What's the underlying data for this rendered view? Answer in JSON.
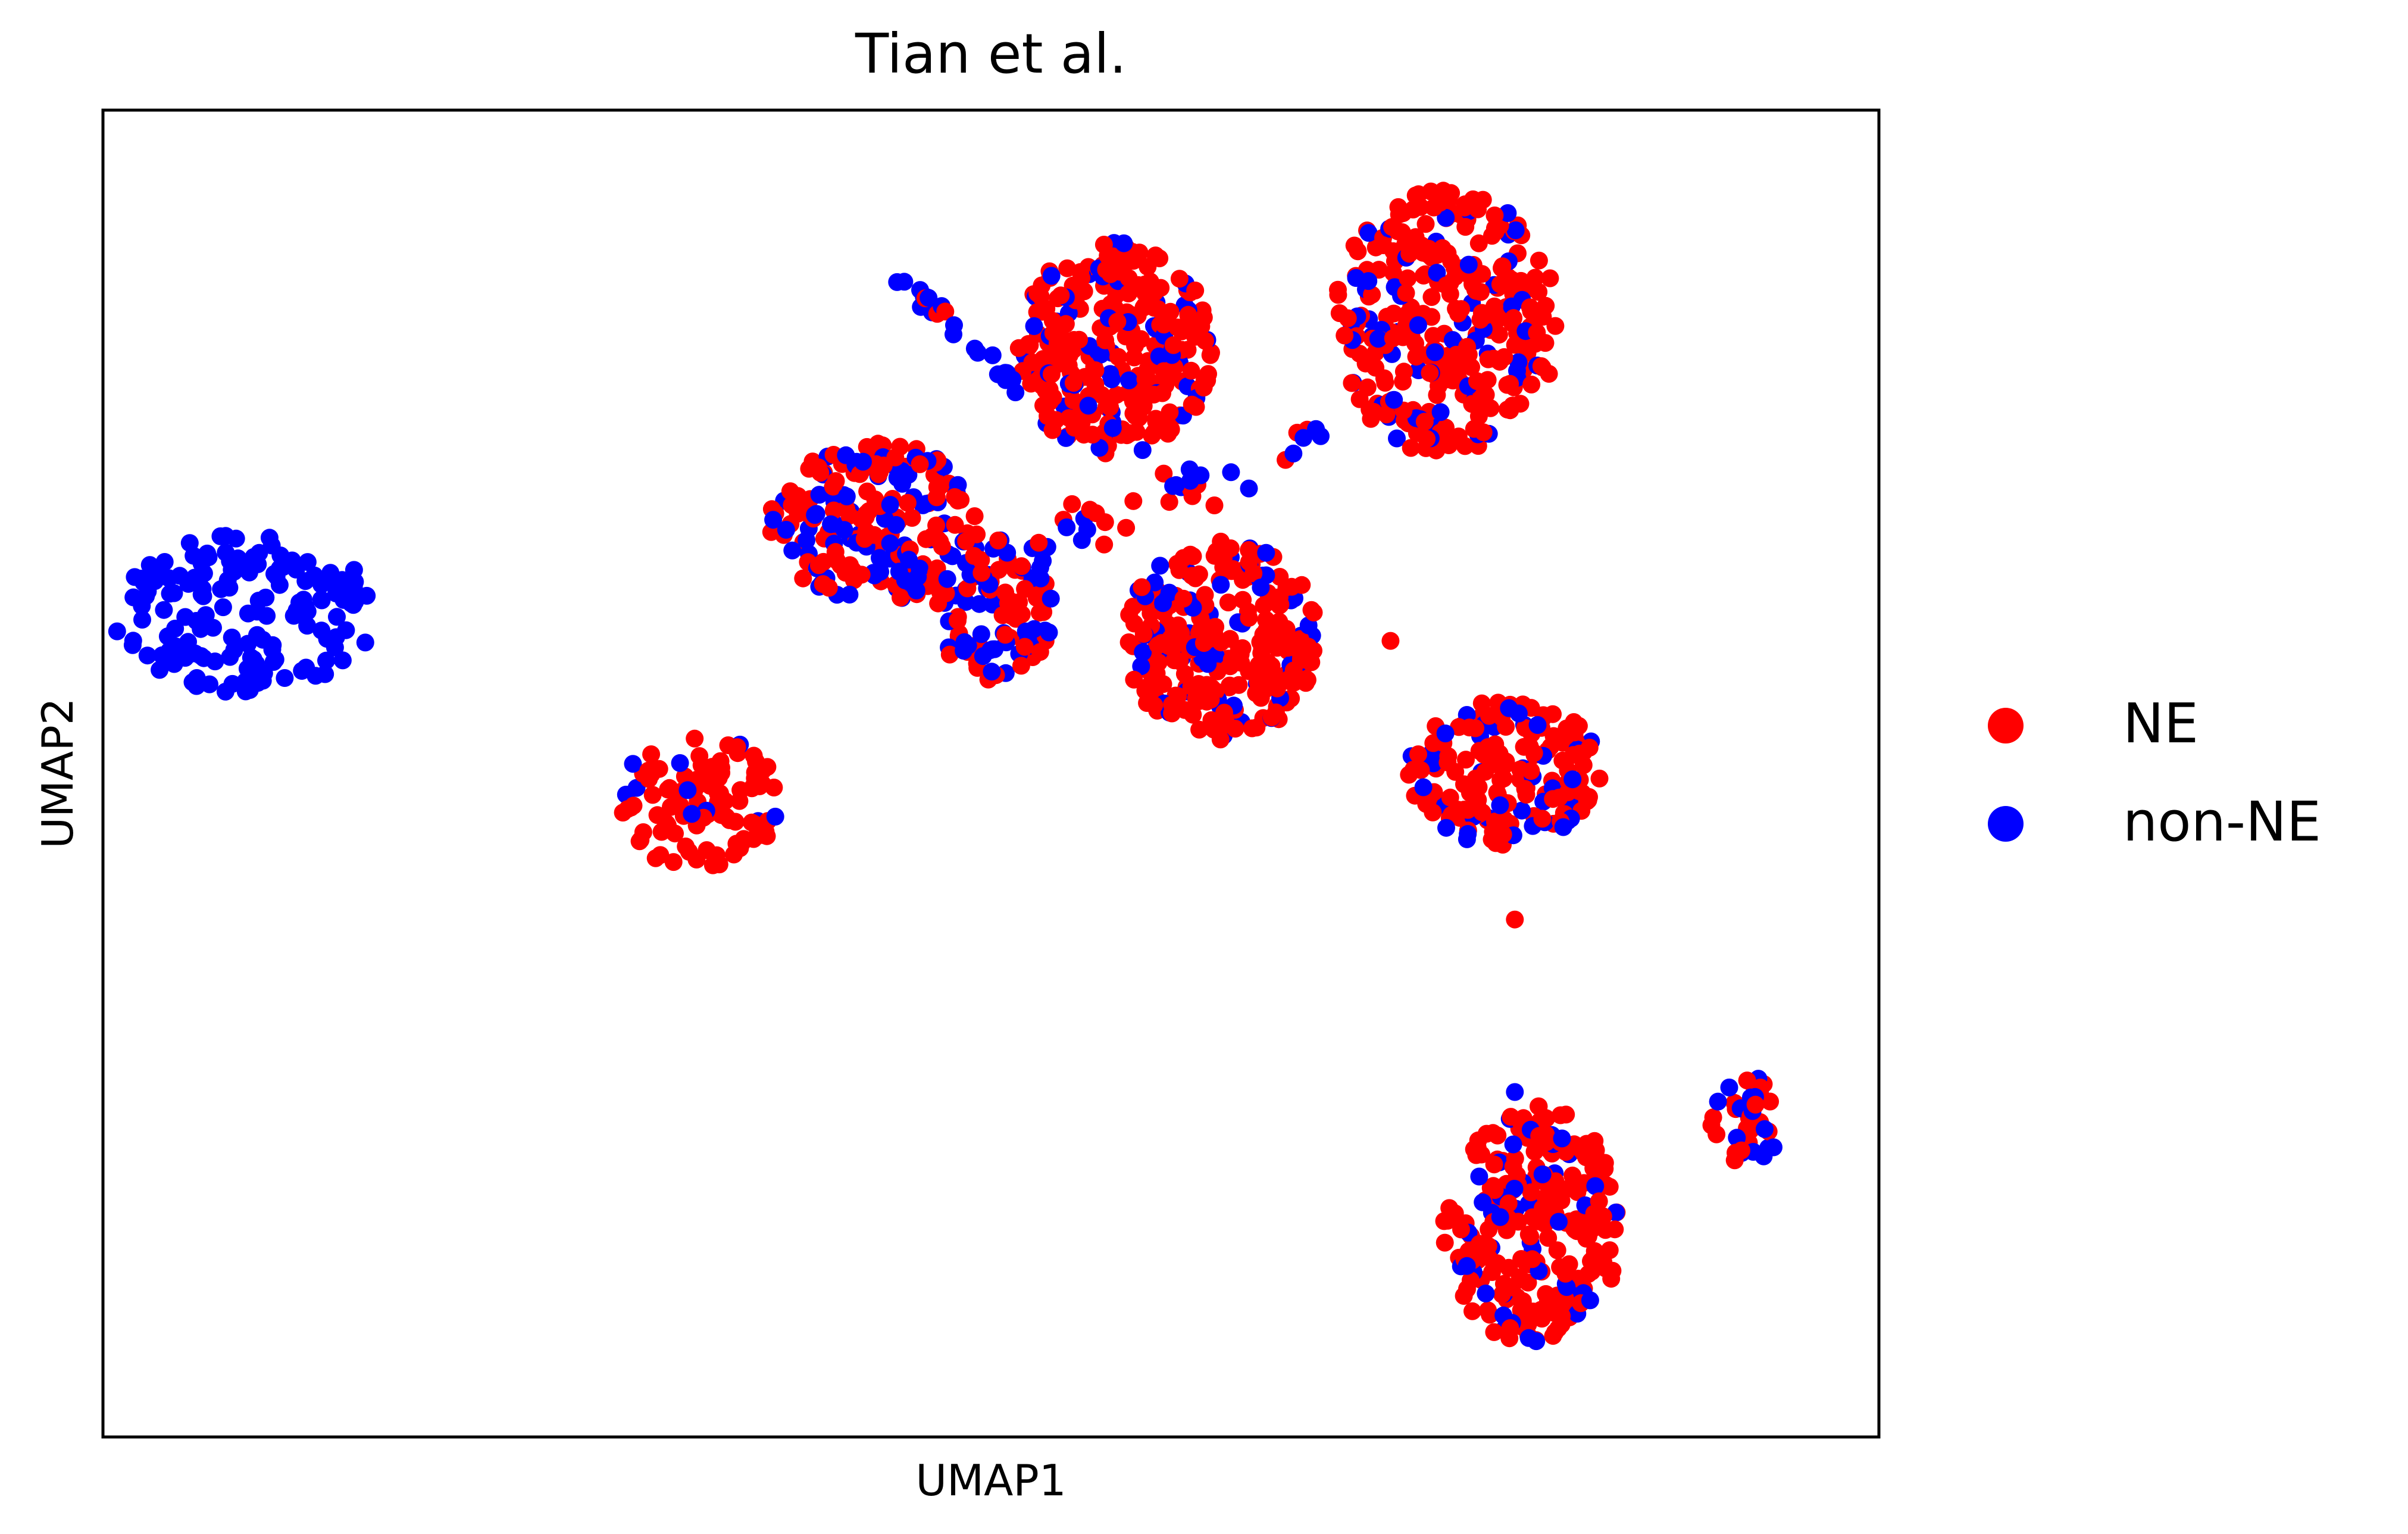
{
  "chart_data": {
    "type": "scatter",
    "title": "Tian et al.",
    "xlabel": "UMAP1",
    "ylabel": "UMAP2",
    "xlim": [
      0,
      100
    ],
    "ylim": [
      0,
      100
    ],
    "grid": false,
    "ticks_shown": false,
    "legend": {
      "placement": "right-outside"
    },
    "series": [
      {
        "name": "NE",
        "color": "#ff0000"
      },
      {
        "name": "non-NE",
        "color": "#0000ff"
      }
    ],
    "clusters": [
      {
        "label": "far-left",
        "cx": 8,
        "cy": 62,
        "rx": 7.5,
        "ry": 6,
        "n": 160,
        "ne_fraction": 0.0,
        "seed": 11
      },
      {
        "label": "left-small",
        "cx": 33.5,
        "cy": 48,
        "rx": 4.5,
        "ry": 5.5,
        "n": 110,
        "ne_fraction": 0.88,
        "seed": 23
      },
      {
        "label": "upper-left-mid",
        "cx": 43.5,
        "cy": 69,
        "rx": 6,
        "ry": 6,
        "n": 210,
        "ne_fraction": 0.62,
        "seed": 37
      },
      {
        "label": "upper-center",
        "cx": 57,
        "cy": 82,
        "rx": 5.5,
        "ry": 8,
        "n": 300,
        "ne_fraction": 0.82,
        "seed": 41
      },
      {
        "label": "upper-right",
        "cx": 75.5,
        "cy": 84,
        "rx": 6.5,
        "ry": 10,
        "n": 330,
        "ne_fraction": 0.84,
        "seed": 53
      },
      {
        "label": "center",
        "cx": 63,
        "cy": 60,
        "rx": 5.5,
        "ry": 7.5,
        "n": 280,
        "ne_fraction": 0.78,
        "seed": 61
      },
      {
        "label": "center-small",
        "cx": 50,
        "cy": 62,
        "rx": 3.5,
        "ry": 5,
        "n": 90,
        "ne_fraction": 0.55,
        "seed": 67
      },
      {
        "label": "right-mid",
        "cx": 79,
        "cy": 50,
        "rx": 5.5,
        "ry": 5.5,
        "n": 180,
        "ne_fraction": 0.72,
        "seed": 71
      },
      {
        "label": "lower-right",
        "cx": 80.5,
        "cy": 16,
        "rx": 5,
        "ry": 9,
        "n": 250,
        "ne_fraction": 0.78,
        "seed": 83
      },
      {
        "label": "far-right-small",
        "cx": 92.5,
        "cy": 24,
        "rx": 2,
        "ry": 3.5,
        "n": 40,
        "ne_fraction": 0.5,
        "seed": 97
      }
    ],
    "bridges": [
      {
        "label": "diagonal-trail",
        "x": [
          44.5,
          51.5
        ],
        "y": [
          88,
          79
        ],
        "n": 24,
        "jitter": 0.8,
        "ne_fraction": 0.05,
        "seed": 101
      },
      {
        "label": "middle-link",
        "x": [
          50,
          68
        ],
        "y": [
          66,
          75
        ],
        "n": 45,
        "jitter": 3.0,
        "ne_fraction": 0.4,
        "seed": 113
      }
    ]
  }
}
